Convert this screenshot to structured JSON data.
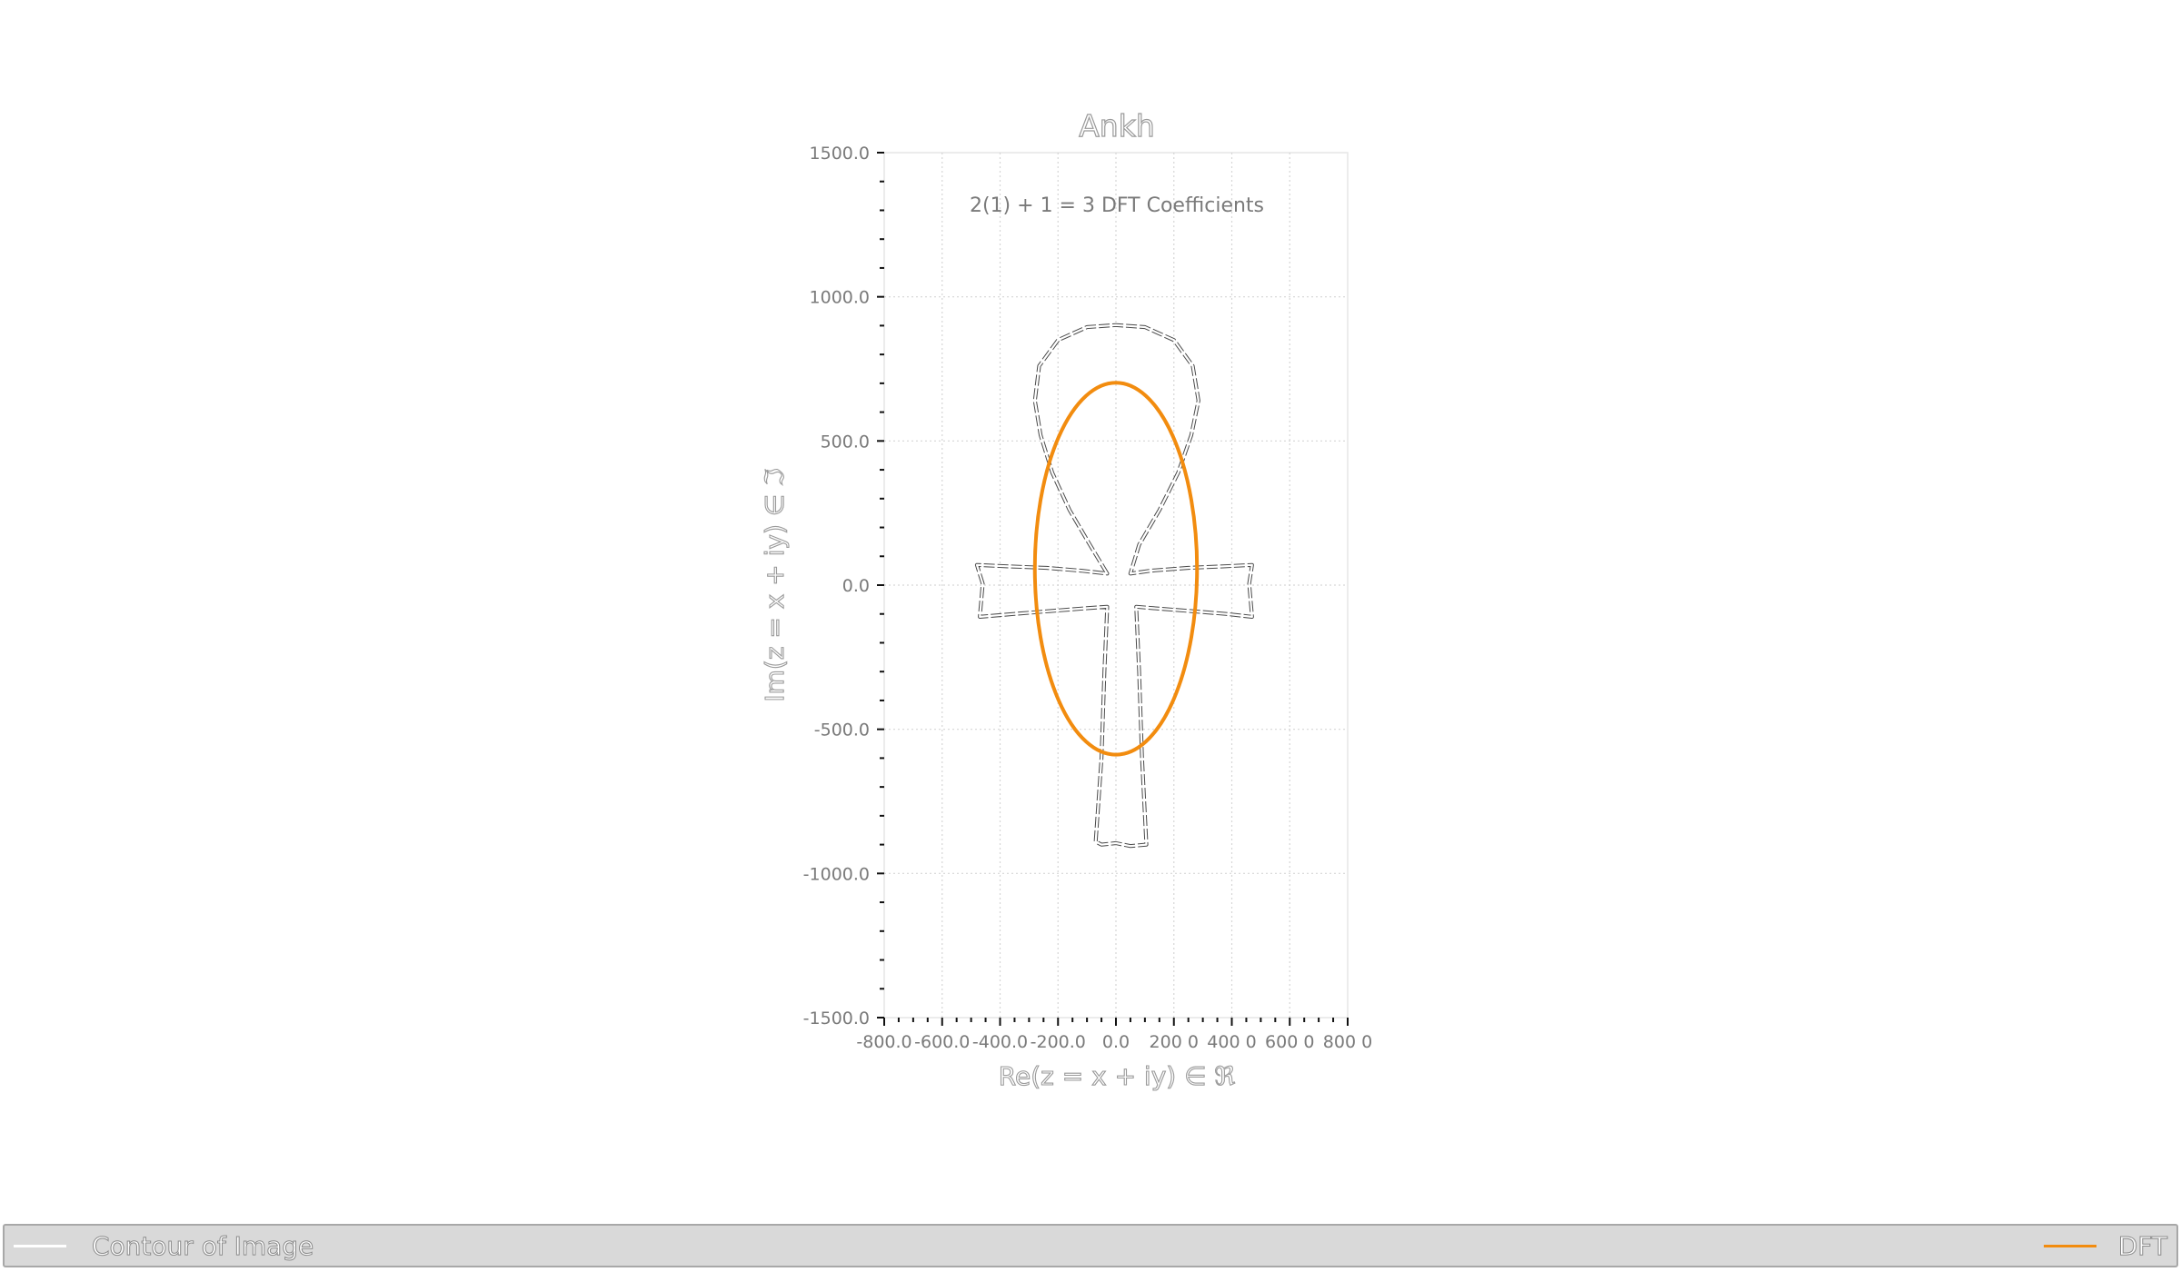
{
  "chart_data": {
    "type": "line",
    "title": "Ankh",
    "annotation": "2(1) + 1 = 3 DFT Coefficients",
    "xlabel": "Re(z = x + iy) ∈ ℜ",
    "ylabel": "Im(z = x + iy) ∈ ℑ",
    "xlim": [
      -800,
      800
    ],
    "ylim": [
      -1500,
      1500
    ],
    "x_ticks": [
      -800,
      -600,
      -400,
      -200,
      0,
      200,
      400,
      600,
      800
    ],
    "x_tick_labels": [
      "-800.0",
      "-600.0",
      "-400.0",
      "-200.0",
      "0.0",
      "200 0",
      "400 0",
      "600 0",
      "800 0"
    ],
    "y_ticks": [
      1500,
      1000,
      500,
      0,
      -500,
      -1000,
      -1500
    ],
    "y_tick_labels": [
      "1500.0",
      "1000.0",
      "500.0",
      "0.0",
      "-500.0",
      "-1000.0",
      "-1500.0"
    ],
    "grid": true,
    "legend_position": "bottom",
    "series": [
      {
        "name": "Contour of Image",
        "color": "#ffffff",
        "style": "dashed-outline",
        "points": [
          [
            -30,
            40
          ],
          [
            -90,
            140
          ],
          [
            -160,
            260
          ],
          [
            -220,
            390
          ],
          [
            -260,
            520
          ],
          [
            -280,
            640
          ],
          [
            -265,
            760
          ],
          [
            -200,
            850
          ],
          [
            -100,
            895
          ],
          [
            0,
            902
          ],
          [
            100,
            895
          ],
          [
            200,
            850
          ],
          [
            265,
            760
          ],
          [
            285,
            640
          ],
          [
            260,
            520
          ],
          [
            215,
            390
          ],
          [
            150,
            260
          ],
          [
            80,
            140
          ],
          [
            50,
            40
          ],
          [
            120,
            50
          ],
          [
            250,
            60
          ],
          [
            370,
            65
          ],
          [
            470,
            70
          ],
          [
            460,
            5
          ],
          [
            470,
            -110
          ],
          [
            380,
            -100
          ],
          [
            260,
            -90
          ],
          [
            130,
            -80
          ],
          [
            70,
            -75
          ],
          [
            80,
            -300
          ],
          [
            90,
            -600
          ],
          [
            105,
            -900
          ],
          [
            50,
            -905
          ],
          [
            0,
            -895
          ],
          [
            -50,
            -900
          ],
          [
            -70,
            -890
          ],
          [
            -50,
            -600
          ],
          [
            -40,
            -300
          ],
          [
            -30,
            -75
          ],
          [
            -100,
            -80
          ],
          [
            -230,
            -90
          ],
          [
            -350,
            -100
          ],
          [
            -470,
            -110
          ],
          [
            -460,
            5
          ],
          [
            -480,
            70
          ],
          [
            -370,
            65
          ],
          [
            -240,
            60
          ],
          [
            -120,
            50
          ],
          [
            -30,
            40
          ]
        ]
      },
      {
        "name": "DFT",
        "color": "#f28c0f",
        "style": "solid",
        "ellipse": {
          "cx": 0,
          "cy": 57,
          "rx": 280,
          "ry": 645
        }
      }
    ]
  }
}
